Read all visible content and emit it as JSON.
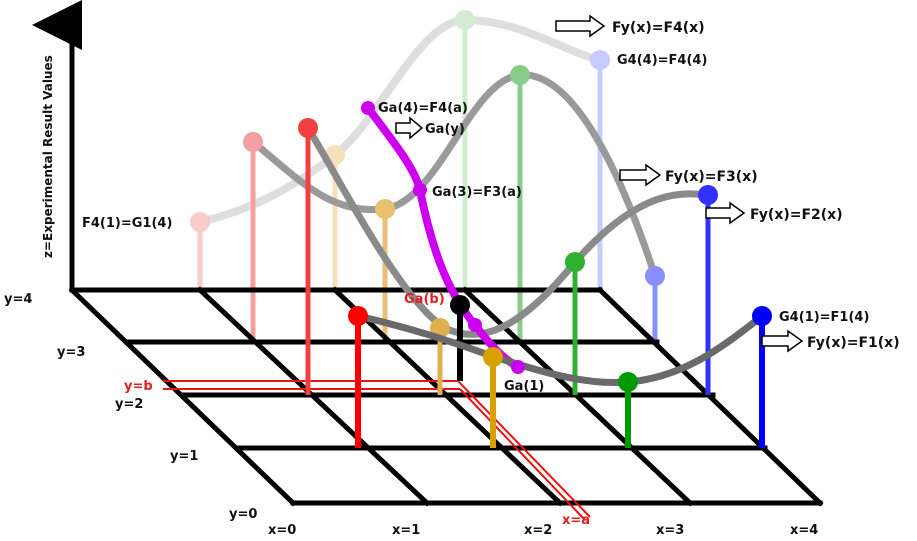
{
  "axis_title_z": "z=Experimental Result Values",
  "x_ticks": [
    "x=0",
    "x=1",
    "x=2",
    "x=3",
    "x=4"
  ],
  "y_ticks": [
    "y=0",
    "y=1",
    "y=2",
    "y=3",
    "y=4"
  ],
  "marker_x": "x=a",
  "marker_y": "y=b",
  "labels": {
    "fy_f4": "Fy(x)=F4(x)",
    "fy_f3": "Fy(x)=F3(x)",
    "fy_f2": "Fy(x)=F2(x)",
    "fy_f1": "Fy(x)=F1(x)",
    "g4_4": "G4(4)=F4(4)",
    "ga_4": "Ga(4)=F4(a)",
    "ga_y": "Ga(y)",
    "ga_3": "Ga(3)=F3(a)",
    "f4_1": "F4(1)=G1(4)",
    "ga_b": "Ga(b)",
    "ga_1": "Ga(1)",
    "g4_1": "G4(1)=F1(4)"
  },
  "colors": {
    "col_x0": "#ff0000",
    "col_x1": "#e0a000",
    "col_x2": "#000000",
    "col_x3": "#00a000",
    "col_x4": "#0000ff",
    "ga_curve": "#cc00ee",
    "fy_curve": "#666666"
  }
}
